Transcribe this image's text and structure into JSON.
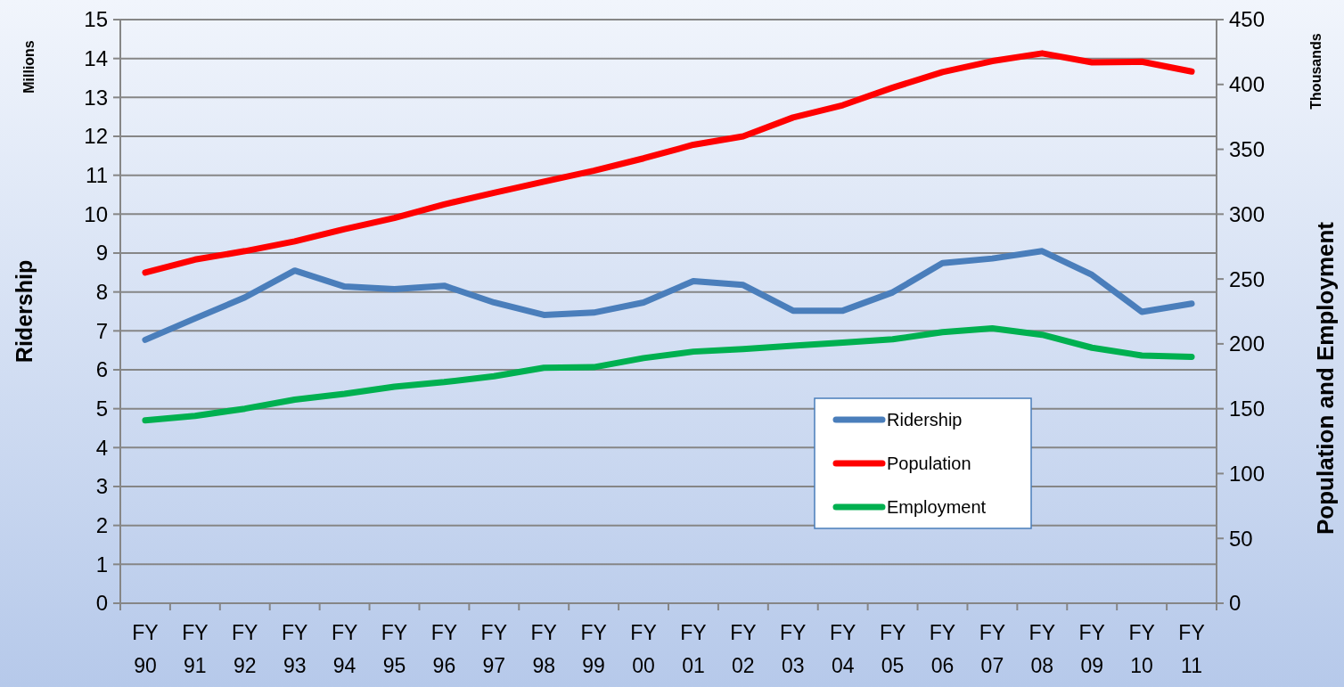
{
  "chart_data": {
    "type": "line",
    "categories": [
      "FY 90",
      "FY 91",
      "FY 92",
      "FY 93",
      "FY 94",
      "FY 95",
      "FY 96",
      "FY 97",
      "FY 98",
      "FY 99",
      "FY 00",
      "FY 01",
      "FY 02",
      "FY 03",
      "FY 04",
      "FY 05",
      "FY 06",
      "FY 07",
      "FY 08",
      "FY 09",
      "FY 10",
      "FY 11"
    ],
    "series": [
      {
        "name": "Ridership",
        "color": "#4a7ebb",
        "values": [
          6.77,
          7.32,
          7.86,
          8.55,
          8.14,
          8.07,
          8.16,
          7.73,
          7.41,
          7.47,
          7.73,
          8.28,
          8.18,
          7.52,
          7.52,
          7.99,
          8.74,
          8.86,
          9.05,
          8.44,
          7.49,
          7.7
        ]
      },
      {
        "name": "Population",
        "color": "#ff0000",
        "axis": "y2",
        "values": [
          255,
          265,
          271.5,
          279,
          288.5,
          297,
          307.5,
          316.5,
          325,
          333.5,
          343,
          353.5,
          360,
          374.5,
          384,
          397.5,
          409.5,
          418,
          424,
          417,
          417.5,
          410
        ]
      },
      {
        "name": "Employment",
        "color": "#00b050",
        "axis": "y2",
        "values": [
          141,
          144.5,
          150,
          157,
          161.5,
          167,
          170.5,
          175,
          181.5,
          182,
          189,
          194,
          196,
          198.5,
          201,
          203.5,
          209,
          212,
          207,
          197,
          191,
          190
        ]
      }
    ],
    "ylabel": "Ridership",
    "y2label": "Population and Employment",
    "annotations": [
      "Millions",
      "Thousands"
    ],
    "ylim": [
      0,
      15
    ],
    "yticks": [
      0,
      1,
      2,
      3,
      4,
      5,
      6,
      7,
      8,
      9,
      10,
      11,
      12,
      13,
      14,
      15
    ],
    "y2lim": [
      0,
      450
    ],
    "y2ticks": [
      0,
      50,
      100,
      150,
      200,
      250,
      300,
      350,
      400,
      450
    ],
    "grid": "y",
    "legend": "bottom right",
    "marker": "none",
    "line_style": "solid"
  }
}
